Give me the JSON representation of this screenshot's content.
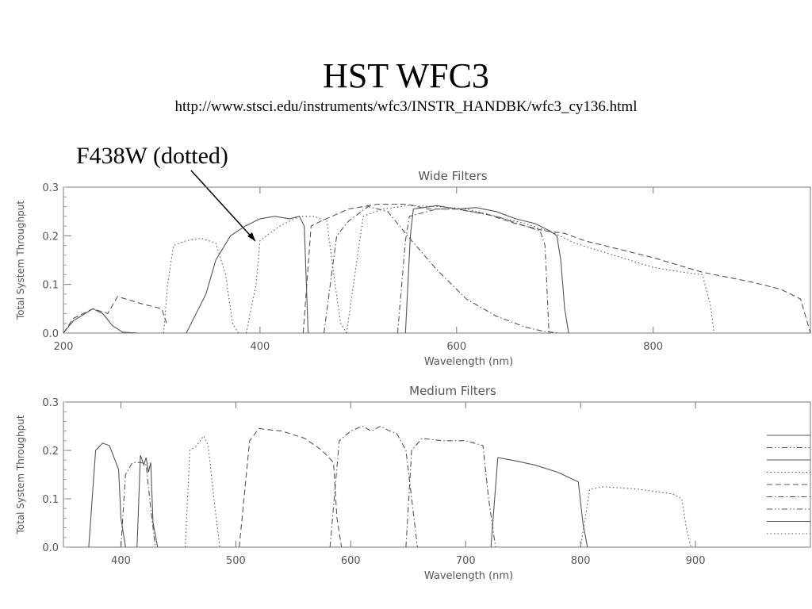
{
  "slide": {
    "title": "HST WFC3",
    "url": "http://www.stsci.edu/instruments/wfc3/INSTR_HANDBK/wfc3_cy136.html",
    "annotation": "F438W (dotted)"
  },
  "chart_data": [
    {
      "type": "line",
      "title": "Wide Filters",
      "xlabel": "Wavelength (nm)",
      "ylabel": "Total System Throughput",
      "xlim": [
        200,
        960
      ],
      "ylim": [
        0,
        0.3
      ],
      "xticks": [
        200,
        400,
        600,
        800
      ],
      "yticks": [
        0.0,
        0.1,
        0.2,
        0.3
      ],
      "ytick_labels": [
        "0.0",
        "0.1",
        "0.2",
        "0.3"
      ],
      "grid": false,
      "series": [
        {
          "dash": "dash",
          "x": [
            200,
            210,
            230,
            245,
            255,
            280,
            300,
            305
          ],
          "y": [
            0,
            0.03,
            0.05,
            0.04,
            0.075,
            0.06,
            0.05,
            0.02
          ]
        },
        {
          "dash": "solid",
          "x": [
            200,
            210,
            230,
            240,
            250,
            260,
            275
          ],
          "y": [
            0,
            0.025,
            0.05,
            0.04,
            0.015,
            0.002,
            0
          ]
        },
        {
          "dash": "dot",
          "x": [
            302,
            306,
            312,
            325,
            340,
            355,
            365,
            372,
            378
          ],
          "y": [
            0,
            0.1,
            0.18,
            0.19,
            0.195,
            0.185,
            0.12,
            0.02,
            0
          ]
        },
        {
          "dash": "solid",
          "x": [
            325,
            345,
            355,
            370,
            385,
            400,
            415,
            430,
            440,
            445,
            449
          ],
          "y": [
            0,
            0.08,
            0.15,
            0.2,
            0.22,
            0.235,
            0.24,
            0.235,
            0.24,
            0.22,
            0
          ]
        },
        {
          "dash": "dot",
          "x": [
            386,
            396,
            400,
            420,
            440,
            455,
            468,
            475,
            482,
            488
          ],
          "y": [
            0,
            0.1,
            0.19,
            0.22,
            0.24,
            0.24,
            0.23,
            0.12,
            0.02,
            0
          ]
        },
        {
          "dash": "dash",
          "x": [
            444,
            452,
            462,
            490,
            520,
            550,
            570,
            600,
            630,
            660,
            690,
            710,
            730,
            760,
            800,
            850,
            900,
            930,
            950,
            960
          ],
          "y": [
            0,
            0.22,
            0.23,
            0.255,
            0.265,
            0.265,
            0.255,
            0.255,
            0.245,
            0.225,
            0.21,
            0.205,
            0.19,
            0.175,
            0.155,
            0.125,
            0.105,
            0.09,
            0.07,
            0
          ]
        },
        {
          "dash": "dashdot",
          "x": [
            465,
            478,
            490,
            510,
            530,
            550,
            580,
            610,
            640,
            670,
            690,
            705
          ],
          "y": [
            0,
            0.2,
            0.23,
            0.26,
            0.25,
            0.2,
            0.13,
            0.07,
            0.035,
            0.012,
            0.003,
            0
          ]
        },
        {
          "dash": "dot",
          "x": [
            488,
            505,
            525,
            550,
            580,
            610,
            640,
            670,
            700,
            720,
            760,
            800,
            830,
            850,
            858,
            862
          ],
          "y": [
            0,
            0.24,
            0.255,
            0.262,
            0.26,
            0.255,
            0.24,
            0.225,
            0.205,
            0.185,
            0.16,
            0.135,
            0.125,
            0.12,
            0.06,
            0
          ]
        },
        {
          "dash": "dashdot",
          "x": [
            540,
            548,
            552,
            580,
            600,
            640,
            670,
            685,
            690,
            694
          ],
          "y": [
            0,
            0.19,
            0.24,
            0.255,
            0.255,
            0.24,
            0.22,
            0.21,
            0.18,
            0
          ]
        },
        {
          "dash": "solid",
          "x": [
            548,
            553,
            556,
            580,
            600,
            620,
            640,
            660,
            680,
            695,
            702,
            706,
            710,
            714
          ],
          "y": [
            0,
            0.2,
            0.255,
            0.262,
            0.255,
            0.258,
            0.25,
            0.235,
            0.225,
            0.21,
            0.2,
            0.15,
            0.05,
            0
          ]
        }
      ]
    },
    {
      "type": "line",
      "title": "Medium Filters",
      "xlabel": "Wavelength (nm)",
      "ylabel": "Total System Throughput",
      "xlim": [
        350,
        1000
      ],
      "ylim": [
        0,
        0.3
      ],
      "xticks": [
        400,
        500,
        600,
        700,
        800,
        900
      ],
      "yticks": [
        0.0,
        0.1,
        0.2,
        0.3
      ],
      "ytick_labels": [
        "0.0",
        "0.1",
        "0.2",
        "0.3"
      ],
      "grid": false,
      "series": [
        {
          "dash": "solid",
          "x": [
            372,
            378,
            384,
            390,
            394,
            398,
            400,
            404
          ],
          "y": [
            0,
            0.2,
            0.215,
            0.21,
            0.185,
            0.16,
            0.06,
            0
          ]
        },
        {
          "dash": "dashdot",
          "x": [
            400,
            404,
            410,
            418,
            422,
            426,
            430
          ],
          "y": [
            0,
            0.15,
            0.175,
            0.175,
            0.17,
            0.08,
            0
          ]
        },
        {
          "dash": "solid",
          "x": [
            414,
            417,
            420,
            422,
            424,
            426,
            428,
            432
          ],
          "y": [
            0,
            0.19,
            0.17,
            0.185,
            0.155,
            0.175,
            0.05,
            0
          ]
        },
        {
          "dash": "dot",
          "x": [
            456,
            460,
            466,
            472,
            476,
            481,
            486
          ],
          "y": [
            0,
            0.2,
            0.21,
            0.23,
            0.21,
            0.1,
            0
          ]
        },
        {
          "dash": "dash",
          "x": [
            503,
            512,
            520,
            540,
            560,
            575,
            585,
            588,
            592
          ],
          "y": [
            0,
            0.22,
            0.245,
            0.24,
            0.225,
            0.2,
            0.175,
            0.06,
            0
          ]
        },
        {
          "dash": "dashdot",
          "x": [
            582,
            590,
            600,
            610,
            618,
            626,
            634,
            640,
            648,
            654,
            658
          ],
          "y": [
            0,
            0.22,
            0.24,
            0.25,
            0.24,
            0.25,
            0.24,
            0.235,
            0.2,
            0.08,
            0
          ]
        },
        {
          "dash": "dashdot",
          "x": [
            648,
            653,
            662,
            680,
            700,
            715,
            720,
            726
          ],
          "y": [
            0,
            0.2,
            0.225,
            0.22,
            0.22,
            0.21,
            0.1,
            0
          ]
        },
        {
          "dash": "solid",
          "x": [
            722,
            728,
            740,
            760,
            780,
            798,
            802,
            806
          ],
          "y": [
            0,
            0.185,
            0.18,
            0.17,
            0.155,
            0.135,
            0.05,
            0
          ]
        },
        {
          "dash": "dot",
          "x": [
            800,
            808,
            820,
            850,
            880,
            888,
            892,
            896
          ],
          "y": [
            0,
            0.12,
            0.125,
            0.12,
            0.11,
            0.1,
            0.04,
            0
          ]
        }
      ]
    }
  ],
  "legend_swatches": [
    "solid",
    "dashdotdot",
    "solid",
    "dot",
    "dash",
    "dashdot",
    "dashdotdot",
    "solid",
    "dot"
  ]
}
